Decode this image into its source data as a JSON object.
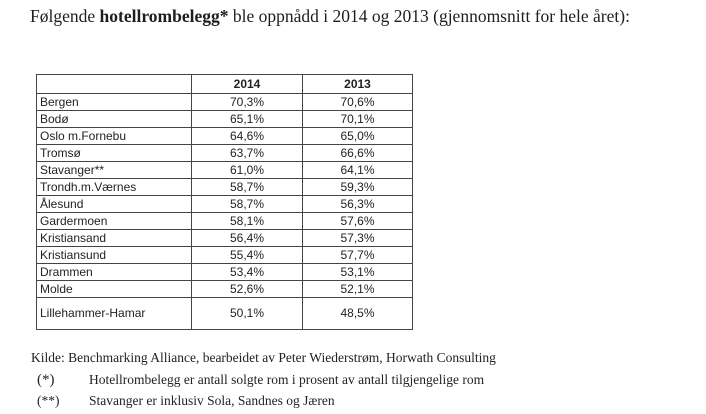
{
  "intro": {
    "before": "Følgende ",
    "bold": "hotellrombelegg*",
    "after": " ble oppnådd i 2014 og 2013 (gjennomsnitt for hele året):"
  },
  "table": {
    "headers": [
      "",
      "2014",
      "2013"
    ],
    "rows": [
      {
        "city": "Bergen",
        "y2014": "70,3%",
        "y2013": "70,6%"
      },
      {
        "city": "Bodø",
        "y2014": "65,1%",
        "y2013": "70,1%"
      },
      {
        "city": "Oslo m.Fornebu",
        "y2014": "64,6%",
        "y2013": "65,0%"
      },
      {
        "city": "Tromsø",
        "y2014": "63,7%",
        "y2013": "66,6%"
      },
      {
        "city": "Stavanger**",
        "y2014": "61,0%",
        "y2013": "64,1%"
      },
      {
        "city": "Trondh.m.Værnes",
        "y2014": "58,7%",
        "y2013": "59,3%"
      },
      {
        "city": "Ålesund",
        "y2014": "58,7%",
        "y2013": "56,3%"
      },
      {
        "city": "Gardermoen",
        "y2014": "58,1%",
        "y2013": "57,6%"
      },
      {
        "city": "Kristiansand",
        "y2014": "56,4%",
        "y2013": "57,3%"
      },
      {
        "city": "Kristiansund",
        "y2014": "55,4%",
        "y2013": "57,7%"
      },
      {
        "city": "Drammen",
        "y2014": "53,4%",
        "y2013": "53,1%"
      },
      {
        "city": "Molde",
        "y2014": "52,6%",
        "y2013": "52,1%"
      },
      {
        "city": "Lillehammer-Hamar",
        "y2014": "50,1%",
        "y2013": "48,5%"
      }
    ]
  },
  "source": "Kilde:   Benchmarking Alliance, bearbeidet av Peter Wiederstrøm, Horwath Consulting",
  "notes": [
    {
      "mark": "(*)",
      "text": "Hotellrombelegg er antall solgte rom i prosent av antall tilgjengelige rom"
    },
    {
      "mark": "(**)",
      "text": "Stavanger er inklusiv Sola, Sandnes og Jæren"
    }
  ]
}
